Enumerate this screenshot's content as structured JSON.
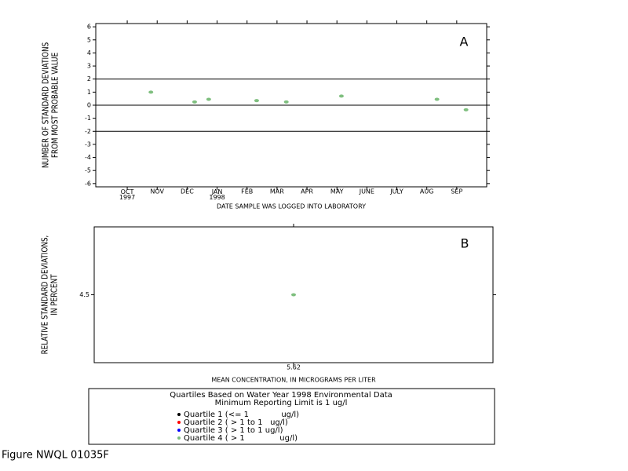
{
  "chart_data": [
    {
      "type": "scatter",
      "annotation": "A",
      "ylabel": [
        "NUMBER OF STANDARD DEVIATIONS",
        "FROM MOST PROBABLE VALUE"
      ],
      "xlabel": "DATE SAMPLE WAS LOGGED INTO LABORATORY",
      "xlim": [
        -1.05,
        12
      ],
      "ylim": [
        -6.25,
        6.25
      ],
      "xticks": [
        {
          "value": 0,
          "label": "OCT 1997"
        },
        {
          "value": 1,
          "label": "NOV"
        },
        {
          "value": 2,
          "label": "DEC"
        },
        {
          "value": 3,
          "label": "JAN 1998"
        },
        {
          "value": 4,
          "label": "FEB"
        },
        {
          "value": 5,
          "label": "MAR"
        },
        {
          "value": 6,
          "label": "APR"
        },
        {
          "value": 7,
          "label": "MAY"
        },
        {
          "value": 8,
          "label": "JUNE"
        },
        {
          "value": 9,
          "label": "JULY"
        },
        {
          "value": 10,
          "label": "AUG"
        },
        {
          "value": 11,
          "label": "SEP"
        }
      ],
      "yticks": [
        6,
        5,
        4,
        3,
        2,
        1,
        0,
        -1,
        -2,
        -3,
        -4,
        -5,
        -6
      ],
      "hlines": [
        2,
        0,
        -2
      ],
      "series": [
        {
          "color": "#7fbf7f",
          "x": [
            0.79,
            2.25,
            2.72,
            4.32,
            5.31,
            7.15,
            10.34,
            11.31
          ],
          "values": [
            1.0,
            0.25,
            0.45,
            0.35,
            0.25,
            0.7,
            0.45,
            -0.35
          ]
        }
      ]
    },
    {
      "type": "scatter",
      "annotation": "B",
      "ylabel": [
        "RELATIVE STANDARD DEVIATIONS,",
        "IN PERCENT"
      ],
      "xlabel": "MEAN CONCENTRATION, IN MICROGRAMS PER LITER",
      "xlim": [
        5.12,
        6.12
      ],
      "ylim": [
        4.0,
        5.0
      ],
      "xticks": [
        5.62
      ],
      "yticks": [
        4.5
      ],
      "series": [
        {
          "color": "#7fbf7f",
          "x": [
            5.62
          ],
          "values": [
            4.5
          ]
        }
      ]
    }
  ],
  "legend": {
    "title": [
      "Quartiles Based on Water Year 1998 Environmental Data",
      "Minimum Reporting Limit is 1 ug/l"
    ],
    "entries": [
      {
        "label": "Quartile 1 (<= 1             ug/l)",
        "color": "#000000"
      },
      {
        "label": "Quartile 2 ( > 1 to 1   ug/l)",
        "color": "#ff0000"
      },
      {
        "label": "Quartile 3 ( > 1 to 1 ug/l)",
        "color": "#0000ff"
      },
      {
        "label": "Quartile 4 ( > 1              ug/l)",
        "color": "#7fbf7f"
      }
    ]
  },
  "footer": "Figure NWQL 01035F"
}
